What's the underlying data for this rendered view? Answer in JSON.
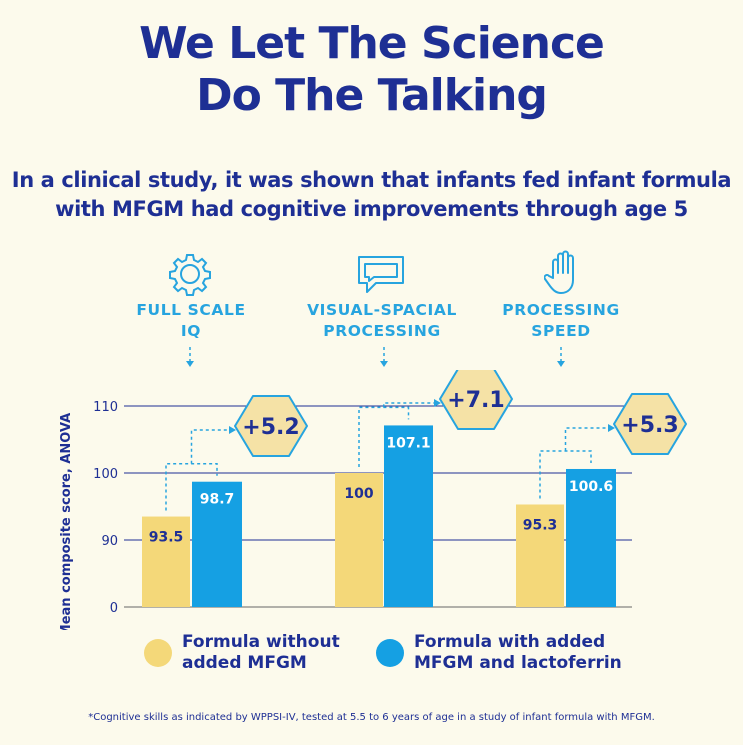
{
  "header": {
    "title_line1": "We Let The Science",
    "title_line2": "Do The Talking",
    "subtitle_line1": "In a clinical study, it was shown that infants fed infant formula",
    "subtitle_line2": "with MFGM had cognitive improvements through age 5"
  },
  "categories": [
    {
      "line1": "FULL SCALE",
      "line2": "IQ",
      "icon": "gear-icon"
    },
    {
      "line1": "VISUAL-SPACIAL",
      "line2": "PROCESSING",
      "icon": "speech-bubble-icon"
    },
    {
      "line1": "PROCESSING",
      "line2": "SPEED",
      "icon": "hand-icon"
    }
  ],
  "legend": {
    "without_line1": "Formula without",
    "without_line2": "added MFGM",
    "with_line1": "Formula with added",
    "with_line2": "MFGM and lactoferrin"
  },
  "footnote": "*Cognitive skills as indicated by WPPSI-IV, tested at 5.5 to 6 years of age in a study of infant formula with MFGM.",
  "colors": {
    "navy": "#1e2f94",
    "blue": "#15a0e3",
    "yellow": "#f4d879",
    "hexagon_fill": "#f5e2a6",
    "hexagon_border": "#27a4df"
  },
  "chart_data": {
    "type": "bar",
    "categories": [
      "FULL SCALE IQ",
      "VISUAL-SPACIAL PROCESSING",
      "PROCESSING SPEED"
    ],
    "series": [
      {
        "name": "Formula without added MFGM",
        "values": [
          93.5,
          100,
          95.3
        ],
        "labels": [
          "93.5",
          "100",
          "95.3"
        ]
      },
      {
        "name": "Formula with added MFGM and lactoferrin",
        "values": [
          98.7,
          107.1,
          100.6
        ],
        "labels": [
          "98.7",
          "107.1",
          "100.6"
        ]
      }
    ],
    "differences": [
      "+5.2",
      "+7.1",
      "+5.3"
    ],
    "ylabel": "Mean composite score, ANOVA",
    "yticks": [
      0,
      90,
      100,
      110
    ],
    "ytick_labels": [
      "0",
      "90",
      "100",
      "110"
    ],
    "axis_break": "between 0 and 90",
    "grid": true
  }
}
